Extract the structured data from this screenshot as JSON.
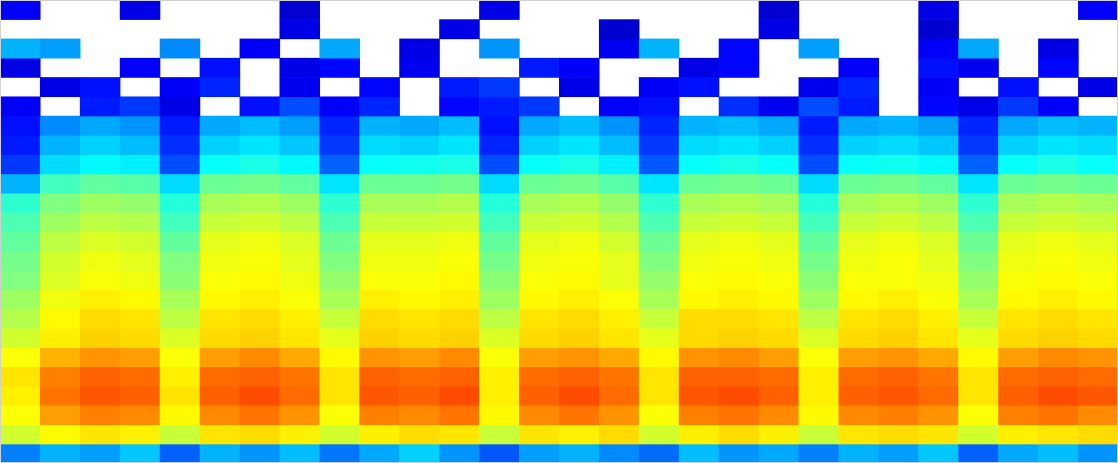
{
  "chart_data": {
    "type": "heatmap",
    "tick_labels": false,
    "xlim": [
      0,
      28
    ],
    "ylim": [
      0,
      24
    ],
    "zlim": [
      0,
      100
    ],
    "cells": [
      [
        25,
        30,
        28,
        32,
        22,
        30,
        27,
        31,
        24,
        29,
        33,
        27,
        21,
        28,
        30,
        26,
        23,
        31,
        27,
        29,
        25,
        30,
        28,
        32,
        22,
        29,
        31,
        27
      ],
      [
        58,
        63,
        65,
        64,
        57,
        65,
        66,
        64,
        58,
        64,
        66,
        65,
        57,
        65,
        64,
        66,
        58,
        64,
        66,
        64,
        57,
        65,
        66,
        65,
        58,
        64,
        65,
        66
      ],
      [
        62,
        72,
        75,
        74,
        63,
        74,
        76,
        73,
        62,
        75,
        74,
        76,
        63,
        74,
        76,
        73,
        62,
        75,
        76,
        74,
        63,
        74,
        75,
        73,
        62,
        75,
        76,
        74
      ],
      [
        64,
        76,
        79,
        78,
        65,
        78,
        80,
        77,
        65,
        79,
        78,
        80,
        64,
        78,
        80,
        77,
        65,
        79,
        80,
        78,
        64,
        78,
        79,
        77,
        65,
        78,
        80,
        79
      ],
      [
        65,
        75,
        78,
        77,
        64,
        77,
        78,
        76,
        65,
        78,
        77,
        78,
        64,
        77,
        78,
        76,
        65,
        78,
        78,
        77,
        64,
        77,
        78,
        76,
        65,
        77,
        78,
        77
      ],
      [
        62,
        70,
        73,
        72,
        62,
        72,
        74,
        71,
        63,
        73,
        72,
        74,
        62,
        72,
        73,
        71,
        63,
        73,
        74,
        72,
        62,
        72,
        73,
        71,
        63,
        72,
        74,
        73
      ],
      [
        58,
        64,
        67,
        66,
        59,
        66,
        67,
        65,
        60,
        67,
        66,
        67,
        59,
        66,
        67,
        65,
        60,
        66,
        67,
        66,
        59,
        66,
        67,
        65,
        60,
        66,
        67,
        66
      ],
      [
        55,
        63,
        66,
        65,
        56,
        65,
        66,
        64,
        57,
        66,
        65,
        66,
        56,
        65,
        66,
        64,
        57,
        66,
        66,
        65,
        56,
        65,
        66,
        64,
        57,
        65,
        66,
        65
      ],
      [
        53,
        61,
        64,
        63,
        54,
        63,
        64,
        62,
        54,
        64,
        63,
        64,
        53,
        63,
        64,
        62,
        54,
        63,
        64,
        63,
        53,
        63,
        64,
        62,
        54,
        63,
        64,
        63
      ],
      [
        50,
        59,
        62,
        61,
        51,
        62,
        63,
        61,
        52,
        62,
        62,
        63,
        51,
        62,
        63,
        60,
        52,
        62,
        63,
        62,
        51,
        62,
        62,
        61,
        52,
        62,
        63,
        62
      ],
      [
        49,
        58,
        61,
        60,
        50,
        61,
        62,
        60,
        50,
        61,
        61,
        62,
        49,
        61,
        62,
        60,
        50,
        61,
        62,
        61,
        49,
        61,
        62,
        60,
        50,
        61,
        62,
        61
      ],
      [
        47,
        56,
        59,
        58,
        47,
        60,
        61,
        59,
        48,
        60,
        60,
        61,
        47,
        60,
        61,
        58,
        48,
        60,
        61,
        60,
        47,
        60,
        61,
        59,
        48,
        60,
        61,
        60
      ],
      [
        45,
        53,
        56,
        55,
        44,
        57,
        58,
        56,
        45,
        57,
        57,
        58,
        44,
        57,
        58,
        55,
        45,
        57,
        58,
        57,
        44,
        57,
        58,
        56,
        45,
        57,
        58,
        57
      ],
      [
        42,
        50,
        53,
        52,
        41,
        54,
        55,
        53,
        42,
        54,
        54,
        55,
        41,
        54,
        55,
        52,
        42,
        54,
        55,
        54,
        41,
        54,
        55,
        53,
        42,
        54,
        55,
        54
      ],
      [
        30,
        44,
        47,
        46,
        34,
        48,
        49,
        47,
        35,
        48,
        48,
        49,
        34,
        48,
        49,
        46,
        35,
        48,
        49,
        48,
        34,
        48,
        49,
        47,
        35,
        48,
        49,
        48
      ],
      [
        18,
        34,
        37,
        36,
        20,
        38,
        40,
        37,
        22,
        38,
        39,
        40,
        20,
        38,
        40,
        36,
        21,
        38,
        40,
        38,
        20,
        38,
        39,
        37,
        22,
        38,
        40,
        38
      ],
      [
        15,
        30,
        33,
        31,
        17,
        33,
        35,
        32,
        18,
        34,
        33,
        35,
        16,
        33,
        35,
        31,
        18,
        34,
        35,
        33,
        17,
        33,
        34,
        32,
        18,
        33,
        35,
        34
      ],
      [
        14,
        26,
        29,
        27,
        15,
        29,
        31,
        28,
        16,
        30,
        29,
        31,
        14,
        29,
        31,
        27,
        16,
        30,
        31,
        29,
        15,
        29,
        30,
        28,
        16,
        29,
        31,
        30
      ],
      [
        12,
        null,
        15,
        18,
        10,
        null,
        14,
        20,
        12,
        16,
        null,
        13,
        15,
        18,
        null,
        12,
        14,
        null,
        17,
        11,
        20,
        15,
        null,
        13,
        10,
        18,
        12,
        null
      ],
      [
        null,
        10,
        14,
        null,
        12,
        16,
        null,
        11,
        null,
        13,
        null,
        15,
        18,
        null,
        10,
        null,
        12,
        14,
        null,
        null,
        11,
        16,
        null,
        12,
        null,
        14,
        null,
        10
      ],
      [
        10,
        null,
        null,
        12,
        null,
        14,
        null,
        10,
        13,
        null,
        11,
        null,
        null,
        15,
        12,
        null,
        null,
        10,
        13,
        null,
        null,
        12,
        null,
        14,
        11,
        null,
        13,
        null
      ],
      [
        30,
        28,
        null,
        null,
        26,
        null,
        12,
        null,
        29,
        null,
        10,
        null,
        27,
        null,
        null,
        11,
        30,
        null,
        13,
        null,
        28,
        null,
        null,
        12,
        29,
        null,
        10,
        null
      ],
      [
        null,
        null,
        null,
        null,
        null,
        null,
        null,
        10,
        null,
        null,
        null,
        10,
        null,
        null,
        null,
        8,
        null,
        null,
        null,
        10,
        null,
        null,
        null,
        8,
        null,
        null,
        null,
        null
      ],
      [
        12,
        null,
        null,
        10,
        null,
        null,
        null,
        8,
        null,
        null,
        null,
        null,
        10,
        null,
        null,
        null,
        null,
        null,
        null,
        8,
        null,
        null,
        null,
        10,
        null,
        null,
        null,
        12
      ]
    ]
  }
}
